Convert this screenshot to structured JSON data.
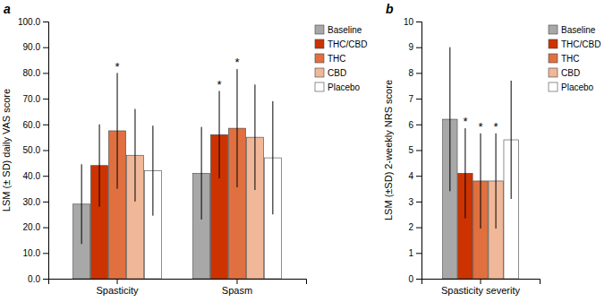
{
  "chart_data": [
    {
      "type": "bar",
      "title": "a",
      "y_label": "LSM (± SD) daily VAS score",
      "categories": [
        "Spasticity",
        "Spasm"
      ],
      "series": [
        {
          "name": "Baseline",
          "color": "#a8a8a8",
          "values": [
            29.0,
            41.0
          ],
          "errors": [
            15.5,
            18.0
          ]
        },
        {
          "name": "THC/CBD",
          "color": "#cc3300",
          "values": [
            44.0,
            56.0
          ],
          "errors": [
            16.0,
            17.0
          ]
        },
        {
          "name": "THC",
          "color": "#e07040",
          "values": [
            57.5,
            58.5
          ],
          "errors": [
            22.5,
            23.0
          ]
        },
        {
          "name": "CBD",
          "color": "#f0b898",
          "values": [
            48.0,
            55.0
          ],
          "errors": [
            18.0,
            20.5
          ]
        },
        {
          "name": "Placebo",
          "color": "#ffffff",
          "values": [
            42.0,
            47.0
          ],
          "errors": [
            17.5,
            22.0
          ]
        }
      ],
      "ylim": [
        0.0,
        100.0
      ],
      "yticks": [
        {
          "value": 0.0,
          "label": "0.0"
        },
        {
          "value": 10.0,
          "label": "10.0"
        },
        {
          "value": 20.0,
          "label": "20.0"
        },
        {
          "value": 30.0,
          "label": "30.0"
        },
        {
          "value": 40.0,
          "label": "40.0"
        },
        {
          "value": 50.0,
          "label": "50.0"
        },
        {
          "value": 60.0,
          "label": "60.0"
        },
        {
          "value": 70.0,
          "label": "70.0"
        },
        {
          "value": 80.0,
          "label": "80.0"
        },
        {
          "value": 90.0,
          "label": "90.0"
        },
        {
          "value": 100.0,
          "label": "100.0"
        }
      ],
      "annotations": [
        {
          "text": "*",
          "series": "THC/CBD",
          "category": "Spasm"
        },
        {
          "text": "*",
          "series": "THC",
          "category": "Spasticity"
        },
        {
          "text": "*",
          "series": "THC",
          "category": "Spasm"
        }
      ],
      "legend": "right",
      "grid": false
    },
    {
      "type": "bar",
      "title": "b",
      "y_label": "LSM (±SD) 2-weekly NRS score",
      "categories": [
        "Spasticity severity"
      ],
      "series": [
        {
          "name": "Baseline",
          "color": "#a8a8a8",
          "values": [
            6.2
          ],
          "errors": [
            2.8
          ]
        },
        {
          "name": "THC/CBD",
          "color": "#cc3300",
          "values": [
            4.1
          ],
          "errors": [
            1.75
          ]
        },
        {
          "name": "THC",
          "color": "#e07040",
          "values": [
            3.8
          ],
          "errors": [
            1.85
          ]
        },
        {
          "name": "CBD",
          "color": "#f0b898",
          "values": [
            3.8
          ],
          "errors": [
            1.85
          ]
        },
        {
          "name": "Placebo",
          "color": "#ffffff",
          "values": [
            5.4
          ],
          "errors": [
            2.3
          ]
        }
      ],
      "ylim": [
        0,
        10
      ],
      "yticks": [
        0,
        1,
        2,
        3,
        4,
        5,
        6,
        7,
        8,
        9,
        10
      ],
      "annotations": [
        {
          "text": "*",
          "series": "THC/CBD",
          "category": "Spasticity severity"
        },
        {
          "text": "*",
          "series": "THC",
          "category": "Spasticity severity"
        },
        {
          "text": "*",
          "series": "CBD",
          "category": "Spasticity severity"
        }
      ],
      "legend": "right",
      "grid": false
    }
  ]
}
